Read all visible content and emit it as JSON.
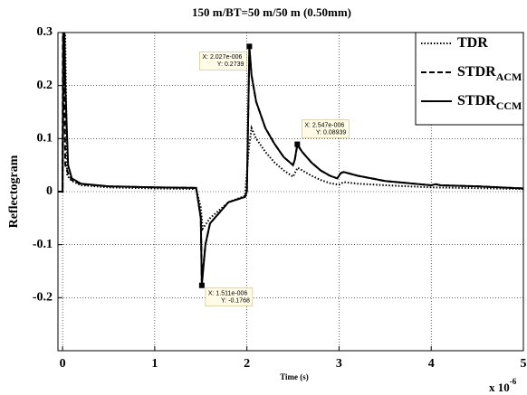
{
  "chart_data": {
    "type": "line",
    "title": "150 m/BT=50 m/50 m (0.50mm)",
    "xlabel": "Time (s)",
    "ylabel": "Reflectogram",
    "x_multiplier": {
      "base": "x 10",
      "exp": "-6"
    },
    "xlim": [
      -0.05,
      5
    ],
    "ylim": [
      -0.3,
      0.3
    ],
    "xticks": [
      0,
      1,
      2,
      3,
      4,
      5
    ],
    "yticks": [
      -0.2,
      -0.1,
      0,
      0.1,
      0.2,
      0.3
    ],
    "grid": true,
    "legend": "upper right",
    "series": [
      {
        "name": "TDR",
        "style": "dotted",
        "color": "#000000",
        "x": [
          -0.05,
          0,
          0.02,
          0.05,
          0.1,
          0.2,
          0.5,
          1.0,
          1.45,
          1.5,
          1.52,
          1.6,
          1.8,
          1.98,
          2.02,
          2.05,
          2.1,
          2.2,
          2.3,
          2.4,
          2.5,
          2.55,
          2.6,
          2.7,
          2.8,
          2.9,
          3.0,
          3.05,
          3.2,
          3.5,
          4.0,
          5.0
        ],
        "values": [
          0,
          0,
          0.4,
          0.03,
          0.02,
          0.012,
          0.008,
          0.006,
          0.005,
          -0.03,
          -0.07,
          -0.05,
          -0.02,
          -0.008,
          0.08,
          0.12,
          0.1,
          0.075,
          0.055,
          0.04,
          0.028,
          0.045,
          0.04,
          0.03,
          0.022,
          0.016,
          0.013,
          0.018,
          0.015,
          0.012,
          0.008,
          0.005
        ]
      },
      {
        "name": "STDR",
        "name_sub": "ACM",
        "style": "dashed",
        "color": "#000000",
        "x": [
          -0.05,
          0,
          0.005,
          0.03,
          0.06,
          0.1,
          0.2,
          0.5,
          1.0,
          1.45,
          1.5,
          1.511,
          1.55,
          1.6,
          1.8,
          1.98,
          2.0,
          2.02,
          2.027,
          2.05,
          2.1,
          2.2,
          2.3,
          2.4,
          2.5,
          2.52,
          2.547,
          2.6,
          2.7,
          2.8,
          2.9,
          2.98,
          3.02,
          3.05,
          3.2,
          3.5,
          4.0,
          4.05,
          4.1,
          4.5,
          5.0
        ],
        "values": [
          0,
          0,
          0.4,
          0.05,
          0.035,
          0.022,
          0.014,
          0.01,
          0.008,
          0.007,
          -0.05,
          -0.17,
          -0.1,
          -0.06,
          -0.02,
          -0.01,
          0.0,
          0.2,
          0.27,
          0.22,
          0.17,
          0.12,
          0.09,
          0.065,
          0.05,
          0.06,
          0.088,
          0.075,
          0.055,
          0.04,
          0.03,
          0.025,
          0.035,
          0.037,
          0.03,
          0.02,
          0.012,
          0.014,
          0.012,
          0.01,
          0.006
        ]
      },
      {
        "name": "STDR",
        "name_sub": "CCM",
        "style": "solid",
        "color": "#000000",
        "x": [
          -0.05,
          0,
          0.01,
          0.03,
          0.06,
          0.1,
          0.2,
          0.5,
          1.0,
          1.45,
          1.5,
          1.511,
          1.55,
          1.6,
          1.8,
          1.98,
          2.0,
          2.02,
          2.027,
          2.05,
          2.1,
          2.2,
          2.3,
          2.4,
          2.5,
          2.52,
          2.547,
          2.6,
          2.7,
          2.8,
          2.9,
          2.98,
          3.02,
          3.05,
          3.2,
          3.5,
          4.0,
          4.05,
          4.1,
          4.5,
          5.0
        ],
        "values": [
          0,
          0,
          0.4,
          0.2,
          0.05,
          0.025,
          0.015,
          0.01,
          0.008,
          0.007,
          -0.05,
          -0.1768,
          -0.1,
          -0.06,
          -0.02,
          -0.01,
          0.0,
          0.2,
          0.2739,
          0.22,
          0.17,
          0.12,
          0.09,
          0.065,
          0.05,
          0.06,
          0.08939,
          0.075,
          0.055,
          0.04,
          0.03,
          0.025,
          0.035,
          0.037,
          0.03,
          0.02,
          0.012,
          0.014,
          0.012,
          0.01,
          0.006
        ]
      }
    ],
    "data_tips": [
      {
        "series": 2,
        "point": 18,
        "x_label": "X: 2.027e-006",
        "y_label": "Y: 0.2739"
      },
      {
        "series": 2,
        "point": 26,
        "x_label": "X: 2.547e-006",
        "y_label": "Y: 0.08939"
      },
      {
        "series": 2,
        "point": 11,
        "x_label": "X: 1.511e-006",
        "y_label": "Y: -0.1768"
      }
    ]
  }
}
